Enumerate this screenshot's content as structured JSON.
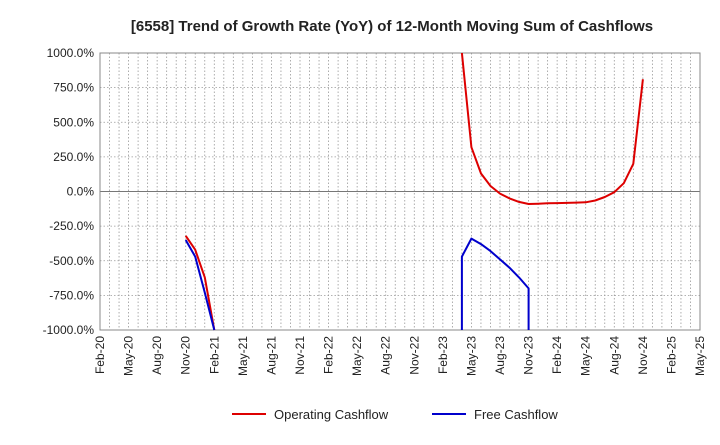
{
  "chart_data": {
    "type": "line",
    "title": "[6558]  Trend of Growth Rate (YoY) of 12-Month Moving Sum of Cashflows",
    "xlabel": "",
    "ylabel": "",
    "ylim": [
      -1000,
      1000
    ],
    "y_ticks": [
      1000,
      750,
      500,
      250,
      0,
      -250,
      -500,
      -750,
      -1000
    ],
    "y_tick_labels": [
      "1000.0%",
      "750.0%",
      "500.0%",
      "250.0%",
      "0.0%",
      "-250.0%",
      "-500.0%",
      "-750.0%",
      "-1000.0%"
    ],
    "x_tick_labels": [
      "Feb-20",
      "May-20",
      "Aug-20",
      "Nov-20",
      "Feb-21",
      "May-21",
      "Aug-21",
      "Nov-21",
      "Feb-22",
      "May-22",
      "Aug-22",
      "Nov-22",
      "Feb-23",
      "May-23",
      "Aug-23",
      "Nov-23",
      "Feb-24",
      "May-24",
      "Aug-24",
      "Nov-24",
      "Feb-25",
      "May-25"
    ],
    "x_start": "2020-02",
    "x_end": "2025-05",
    "grid": true,
    "legend_position": "bottom",
    "series": [
      {
        "name": "Operating Cashflow",
        "color": "#dd0000",
        "points": [
          [
            "2020-11",
            -320
          ],
          [
            "2020-12",
            -420
          ],
          [
            "2021-01",
            -620
          ],
          [
            "2021-02",
            -1000
          ],
          [
            "2023-04",
            1000
          ],
          [
            "2023-05",
            320
          ],
          [
            "2023-06",
            130
          ],
          [
            "2023-07",
            40
          ],
          [
            "2023-08",
            -15
          ],
          [
            "2023-09",
            -50
          ],
          [
            "2023-10",
            -75
          ],
          [
            "2023-11",
            -90
          ],
          [
            "2023-12",
            -88
          ],
          [
            "2024-01",
            -85
          ],
          [
            "2024-02",
            -84
          ],
          [
            "2024-03",
            -82
          ],
          [
            "2024-04",
            -80
          ],
          [
            "2024-05",
            -78
          ],
          [
            "2024-06",
            -65
          ],
          [
            "2024-07",
            -40
          ],
          [
            "2024-08",
            -5
          ],
          [
            "2024-09",
            60
          ],
          [
            "2024-10",
            200
          ],
          [
            "2024-11",
            810
          ]
        ]
      },
      {
        "name": "Free Cashflow",
        "color": "#0000cc",
        "points": [
          [
            "2020-11",
            -350
          ],
          [
            "2020-12",
            -470
          ],
          [
            "2021-01",
            -730
          ],
          [
            "2021-02",
            -1000
          ],
          [
            "2023-04",
            -1000
          ],
          [
            "2023-04",
            -470
          ],
          [
            "2023-05",
            -340
          ],
          [
            "2023-06",
            -380
          ],
          [
            "2023-07",
            -430
          ],
          [
            "2023-08",
            -490
          ],
          [
            "2023-09",
            -550
          ],
          [
            "2023-10",
            -620
          ],
          [
            "2023-11",
            -700
          ],
          [
            "2023-11",
            -1000
          ]
        ]
      }
    ]
  }
}
